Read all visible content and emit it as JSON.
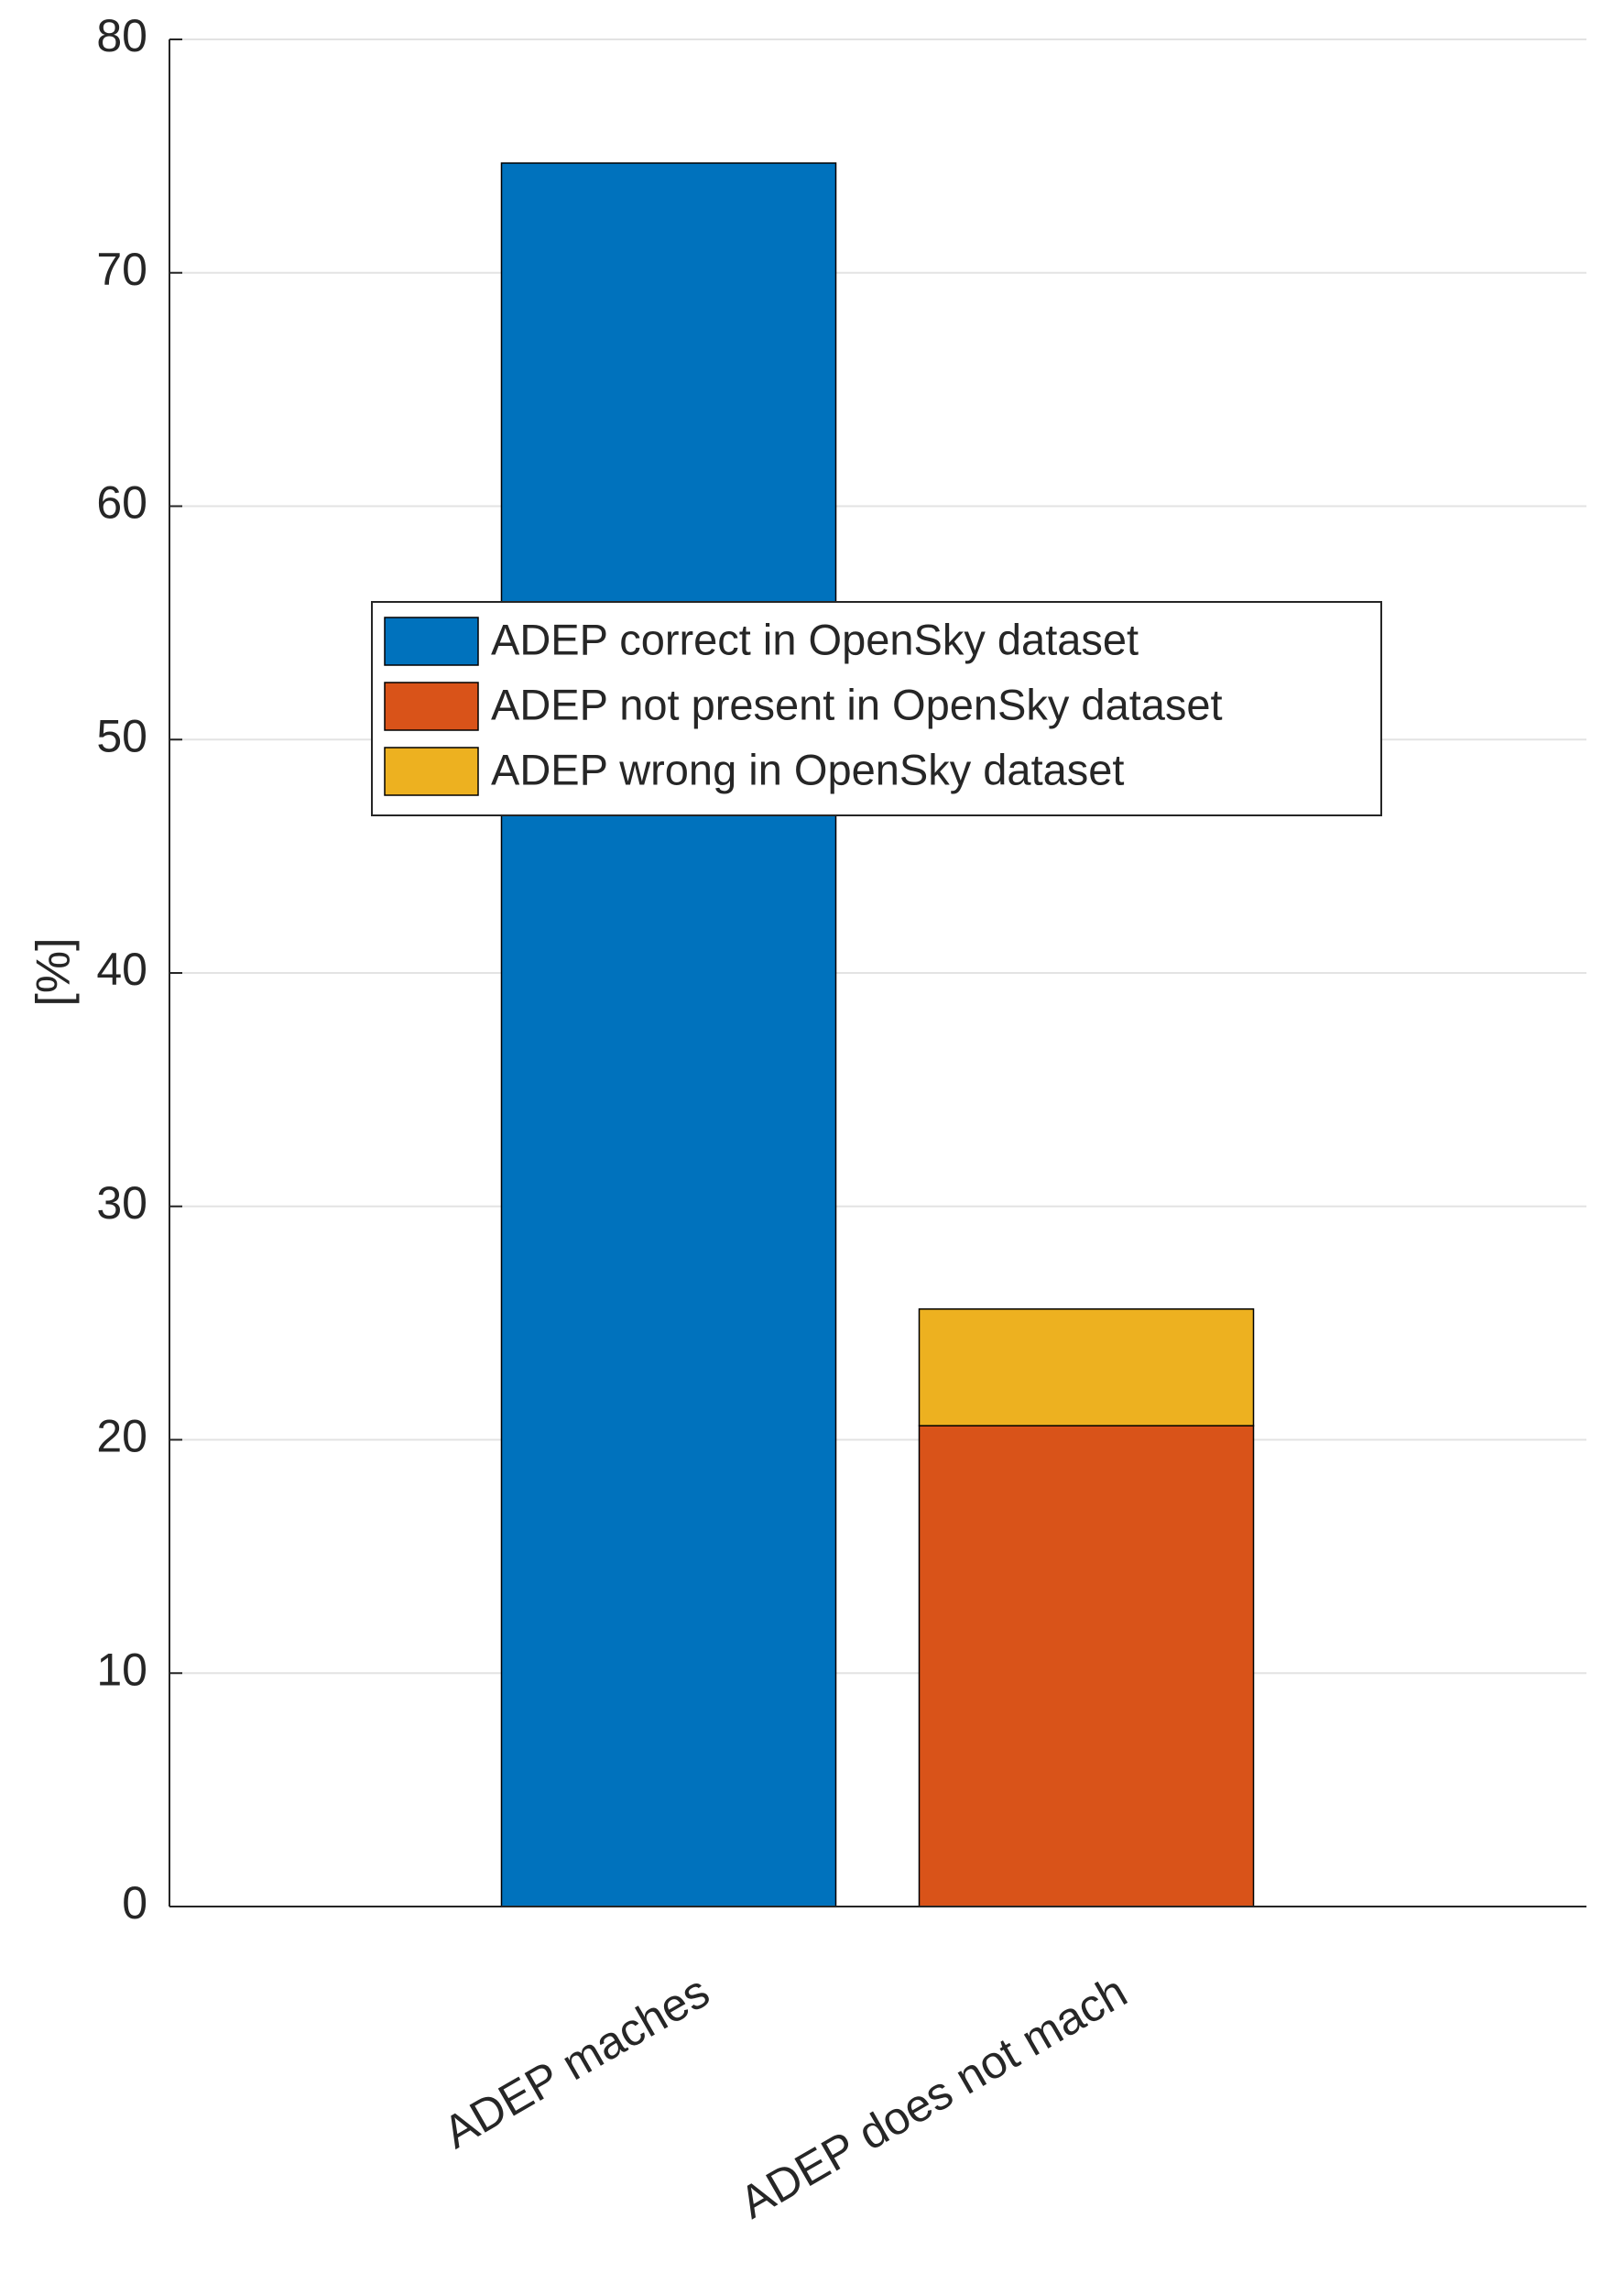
{
  "chart_data": {
    "type": "stacked-bar",
    "ylabel": "[%]",
    "categories": [
      "ADEP maches",
      "ADEP does not mach"
    ],
    "series": [
      {
        "name": "ADEP correct in OpenSky dataset",
        "color": "#0072bd",
        "values": [
          74.7,
          0
        ]
      },
      {
        "name": "ADEP not present in OpenSky dataset",
        "color": "#d95319",
        "values": [
          0,
          20.6
        ]
      },
      {
        "name": "ADEP wrong in OpenSky dataset",
        "color": "#edb120",
        "values": [
          0,
          5.0
        ]
      }
    ],
    "ylim": [
      0,
      80
    ],
    "yticks": [
      0,
      10,
      20,
      30,
      40,
      50,
      60,
      70,
      80
    ],
    "grid": true,
    "legend": "center"
  }
}
